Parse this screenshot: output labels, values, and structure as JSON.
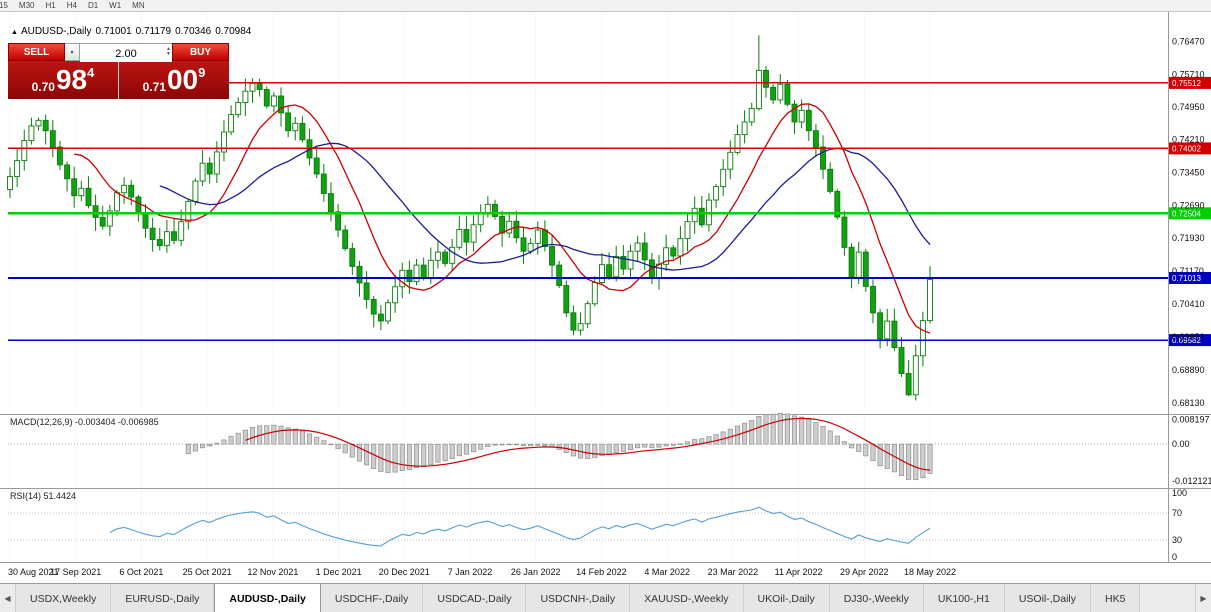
{
  "timeframe_bar": {
    "buttons": [
      "15",
      "M30",
      "H1",
      "H4",
      "D1",
      "W1",
      "MN"
    ]
  },
  "chart_title": {
    "collapse_arrow": "▲",
    "symbol": "AUDUSD-,Daily",
    "open": "0.71001",
    "high": "0.71179",
    "low": "0.70346",
    "close": "0.70984"
  },
  "trade_panel": {
    "sell_button": "SELL",
    "buy_button": "BUY",
    "volume": "2.00",
    "volume_dropdown_icon": "▾",
    "spin_up_icon": "▲",
    "spin_down_icon": "▼",
    "sell_price": {
      "prefix": "0.70",
      "big": "98",
      "sup": "4"
    },
    "buy_price": {
      "prefix": "0.71",
      "big": "00",
      "sup": "9"
    }
  },
  "chart_data": {
    "type": "candlestick",
    "symbol": "AUDUSD-",
    "timeframe": "Daily",
    "ohlc_display": {
      "open": "0.71001",
      "high": "0.71179",
      "low": "0.70346",
      "close": "0.70984"
    },
    "y_axis": {
      "range": [
        0.679,
        0.771
      ],
      "ticks": [
        "0.76470",
        "0.75710",
        "0.74950",
        "0.74210",
        "0.73450",
        "0.72690",
        "0.71930",
        "0.71170",
        "0.70410",
        "0.69650",
        "0.68890",
        "0.68130"
      ]
    },
    "x_axis": {
      "ticks": [
        "30 Aug 2021",
        "17 Sep 2021",
        "6 Oct 2021",
        "25 Oct 2021",
        "12 Nov 2021",
        "1 Dec 2021",
        "20 Dec 2021",
        "7 Jan 2022",
        "26 Jan 2022",
        "14 Feb 2022",
        "4 Mar 2022",
        "23 Mar 2022",
        "11 Apr 2022",
        "29 Apr 2022",
        "18 May 2022"
      ]
    },
    "closes": [
      0.7335,
      0.7372,
      0.7418,
      0.7452,
      0.7465,
      0.7441,
      0.7403,
      0.7362,
      0.733,
      0.7291,
      0.7308,
      0.7268,
      0.7241,
      0.7221,
      0.7256,
      0.7298,
      0.7315,
      0.7288,
      0.7252,
      0.7216,
      0.719,
      0.7176,
      0.7208,
      0.7188,
      0.7231,
      0.7278,
      0.7325,
      0.7366,
      0.7341,
      0.7392,
      0.7438,
      0.7478,
      0.7506,
      0.7532,
      0.755,
      0.7536,
      0.7498,
      0.7521,
      0.7482,
      0.7441,
      0.7458,
      0.742,
      0.7378,
      0.7341,
      0.7296,
      0.7254,
      0.7212,
      0.7169,
      0.7128,
      0.709,
      0.7052,
      0.7018,
      0.7002,
      0.7044,
      0.7081,
      0.7119,
      0.7093,
      0.7131,
      0.7102,
      0.7142,
      0.7161,
      0.7135,
      0.7172,
      0.7213,
      0.7184,
      0.7224,
      0.7252,
      0.7271,
      0.7243,
      0.7205,
      0.7232,
      0.7194,
      0.7163,
      0.7181,
      0.7212,
      0.7174,
      0.7131,
      0.7084,
      0.7021,
      0.6981,
      0.6996,
      0.7042,
      0.7091,
      0.7132,
      0.7104,
      0.7151,
      0.7122,
      0.7163,
      0.7182,
      0.7143,
      0.7101,
      0.7133,
      0.7171,
      0.7152,
      0.7192,
      0.7231,
      0.7262,
      0.7224,
      0.7281,
      0.7312,
      0.7352,
      0.7391,
      0.7432,
      0.7461,
      0.7492,
      0.758,
      0.7541,
      0.7512,
      0.7548,
      0.7502,
      0.7461,
      0.7488,
      0.7441,
      0.7403,
      0.7352,
      0.7301,
      0.7242,
      0.7172,
      0.7103,
      0.7161,
      0.7082,
      0.7021,
      0.6961,
      0.7002,
      0.6941,
      0.6881,
      0.6832,
      0.6922,
      0.7003,
      0.7098
    ],
    "wick_overrides": {
      "105": {
        "high": 0.7661
      },
      "126": {
        "low": 0.6829
      }
    },
    "candle_style": {
      "border": "#0a7d0a",
      "wick": "#0a7d0a",
      "bull_fill": "#ffffff",
      "bear_fill": "#12a112"
    },
    "moving_averages": [
      {
        "period": 10,
        "color": "#cc0000"
      },
      {
        "period": 22,
        "color": "#1c1c94"
      }
    ],
    "horizontal_lines": [
      {
        "value": 0.75512,
        "label": "0.75512",
        "color": "#d40000",
        "width": 1.4
      },
      {
        "value": 0.74002,
        "label": "0.74002",
        "color": "#d40000",
        "width": 1.4
      },
      {
        "value": 0.72504,
        "label": "0.72504",
        "color": "#00cf00",
        "width": 2.2
      },
      {
        "value": 0.71013,
        "label": "0.71013",
        "color": "#0000c8",
        "width": 1.6
      },
      {
        "value": 0.69582,
        "label": "0.69582",
        "color": "#0000c8",
        "width": 1.6
      }
    ],
    "indicators": {
      "macd": {
        "label": "MACD(12,26,9) -0.003404 -0.006985",
        "params": [
          12,
          26,
          9
        ],
        "range": [
          -0.0135,
          0.009
        ],
        "axis_ticks": [
          "0.008197",
          "0.00",
          "-0.012121"
        ],
        "histogram_fill": "#cdcdcd",
        "histogram_border": "#8f8f8f",
        "signal_color": "#cc0000"
      },
      "rsi": {
        "label": "RSI(14) 51.4424",
        "period": 14,
        "range": [
          0,
          100
        ],
        "axis_ticks": [
          "100",
          "70",
          "30",
          "0"
        ],
        "levels": [
          70,
          30
        ],
        "line_color": "#56a0d3"
      }
    }
  },
  "tab_bar": {
    "scroll_left": "◀",
    "scroll_right": "▶",
    "tabs": [
      {
        "label": "USDX,Weekly"
      },
      {
        "label": "EURUSD-,Daily"
      },
      {
        "label": "AUDUSD-,Daily",
        "active": true
      },
      {
        "label": "USDCHF-,Daily"
      },
      {
        "label": "USDCAD-,Daily"
      },
      {
        "label": "USDCNH-,Daily"
      },
      {
        "label": "XAUUSD-,Weekly"
      },
      {
        "label": "UKOil-,Daily"
      },
      {
        "label": "DJ30-,Weekly"
      },
      {
        "label": "UK100-,H1"
      },
      {
        "label": "USOil-,Daily"
      },
      {
        "label": "HK5"
      }
    ]
  }
}
